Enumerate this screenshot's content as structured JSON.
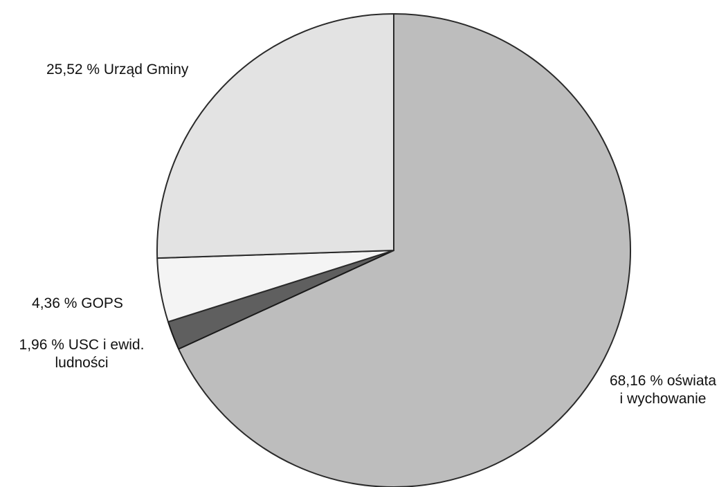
{
  "chart_data": {
    "type": "pie",
    "title": "",
    "slices": [
      {
        "label_lines": [
          "68,16 % oświata",
          "i wychowanie"
        ],
        "value": 68.16,
        "color": "#bdbdbd",
        "stroke": "#2a2a2a"
      },
      {
        "label_lines": [
          "1,96 % USC i ewid.",
          "ludności"
        ],
        "value": 1.96,
        "color": "#5f5f5f",
        "stroke": "#1a1a1a"
      },
      {
        "label_lines": [
          "4,36 % GOPS"
        ],
        "value": 4.36,
        "color": "#f4f4f4",
        "stroke": "#2a2a2a"
      },
      {
        "label_lines": [
          "25,52 % Urząd Gminy"
        ],
        "value": 25.52,
        "color": "#e3e3e3",
        "stroke": "#2a2a2a"
      }
    ],
    "start_direction": "top",
    "clockwise": true,
    "legend": "none"
  }
}
